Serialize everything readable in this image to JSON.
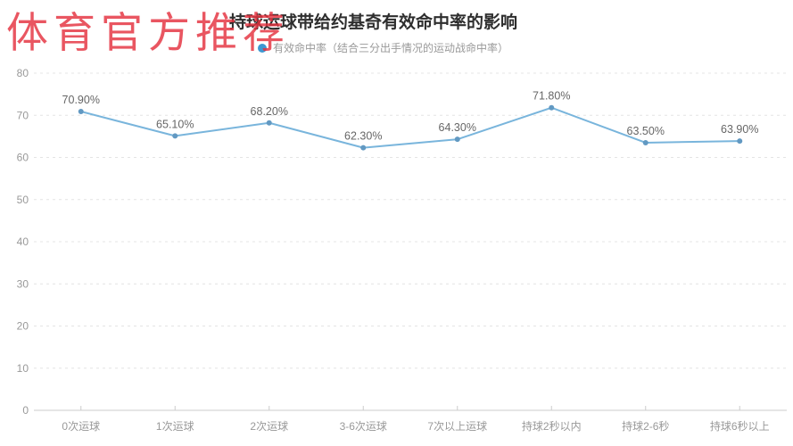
{
  "watermark": {
    "text": "体育官方推荐",
    "color": "#e5323f"
  },
  "title": "持球运球带给约基奇有效命中率的影响",
  "legend": {
    "label": "有效命中率（结合三分出手情况的运动战命中率）",
    "marker_color": "#3e97d1"
  },
  "chart_data": {
    "type": "line",
    "title": "持球运球带给约基奇有效命中率的影响",
    "categories": [
      "0次运球",
      "1次运球",
      "2次运球",
      "3-6次运球",
      "7次以上运球",
      "持球2秒以内",
      "持球2-6秒",
      "持球6秒以上"
    ],
    "series": [
      {
        "name": "有效命中率（结合三分出手情况的运动战命中率）",
        "values": [
          70.9,
          65.1,
          68.2,
          62.3,
          64.3,
          71.8,
          63.5,
          63.9
        ]
      }
    ],
    "data_labels": [
      "70.90%",
      "65.10%",
      "68.20%",
      "62.30%",
      "64.30%",
      "71.80%",
      "63.50%",
      "63.90%"
    ],
    "xlabel": "",
    "ylabel": "",
    "ylim": [
      0,
      80
    ],
    "y_ticks": [
      0,
      10,
      20,
      30,
      40,
      50,
      60,
      70,
      80
    ],
    "grid": true,
    "grid_style": "dashed",
    "legend_position": "top",
    "colors": {
      "line": "#79b5dc",
      "point": "#6299c2",
      "data_label": "#666666",
      "axis_label": "#999999",
      "grid_line": "#e4e4e4",
      "axis_line": "#cccccc"
    }
  }
}
